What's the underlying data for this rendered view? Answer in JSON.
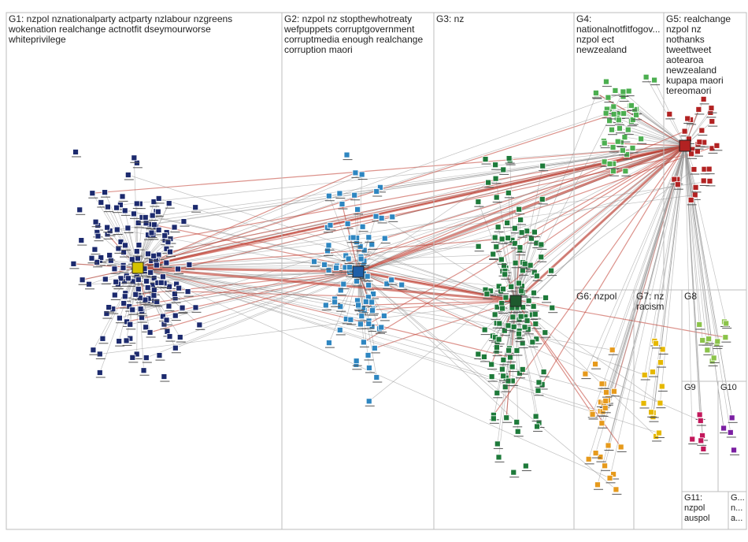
{
  "groups": [
    {
      "lines": [
        "G1: nzpol nznationalparty actparty nzlabour nzgreens",
        "wokenation realchange actnotfit dseymourworse",
        "whiteprivilege"
      ]
    },
    {
      "lines": [
        "G2: nzpol nz stopthewhotreaty",
        "wefpuppets corruptgovernment",
        "corruptmedia enough realchange",
        "corruption maori"
      ]
    },
    {
      "lines": [
        "G3: nz"
      ]
    },
    {
      "lines": [
        "G4:",
        "nationalnotfitfogov...",
        "nzpol ect",
        "newzealand"
      ]
    },
    {
      "lines": [
        "G5: realchange",
        "nzpol nz",
        "nothanks",
        "tweettweet",
        "aotearoa",
        "newzealand",
        "kupapa maori",
        "tereomaori"
      ]
    },
    {
      "lines": [
        "G6: nzpol"
      ]
    },
    {
      "lines": [
        "G7: nz",
        "racism"
      ]
    },
    {
      "lines": [
        "G8"
      ]
    },
    {
      "lines": [
        "G9"
      ]
    },
    {
      "lines": [
        "G10"
      ]
    },
    {
      "lines": [
        "G11:",
        "nzpol",
        "auspol"
      ]
    },
    {
      "lines": [
        "G...",
        "n...",
        "a..."
      ]
    }
  ]
}
